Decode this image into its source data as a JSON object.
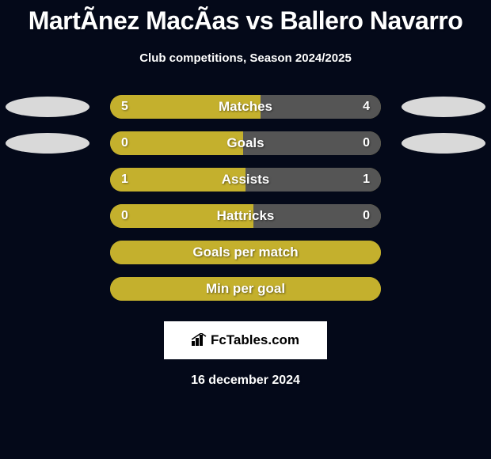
{
  "colors": {
    "background": "#040919",
    "title": "#ffffff",
    "subtitle": "#ffffff",
    "bar_bg": "#9c8a1f",
    "fill_left": "#c4b02d",
    "fill_right": "#555555",
    "ellipse_left": "#d9d9d9",
    "ellipse_right": "#d9d9d9",
    "label_text": "#ffffff",
    "value_text": "#ffffff",
    "brand_bg": "#ffffff",
    "brand_text": "#000000",
    "date_text": "#ffffff"
  },
  "title": "MartÃ­nez MacÃ­as vs Ballero Navarro",
  "subtitle": "Club competitions, Season 2024/2025",
  "rows": [
    {
      "label": "Matches",
      "left_val": "5",
      "right_val": "4",
      "left_pct": 55.5,
      "right_pct": 44.5,
      "show_vals": true,
      "show_ellipses": true
    },
    {
      "label": "Goals",
      "left_val": "0",
      "right_val": "0",
      "left_pct": 49,
      "right_pct": 51,
      "show_vals": true,
      "show_ellipses": true
    },
    {
      "label": "Assists",
      "left_val": "1",
      "right_val": "1",
      "left_pct": 50,
      "right_pct": 50,
      "show_vals": true,
      "show_ellipses": false
    },
    {
      "label": "Hattricks",
      "left_val": "0",
      "right_val": "0",
      "left_pct": 53,
      "right_pct": 47,
      "show_vals": true,
      "show_ellipses": false
    },
    {
      "label": "Goals per match",
      "left_val": "",
      "right_val": "",
      "left_pct": 100,
      "right_pct": 0,
      "show_vals": false,
      "show_ellipses": false
    },
    {
      "label": "Min per goal",
      "left_val": "",
      "right_val": "",
      "left_pct": 100,
      "right_pct": 0,
      "show_vals": false,
      "show_ellipses": false
    }
  ],
  "brand": "FcTables.com",
  "date": "16 december 2024"
}
